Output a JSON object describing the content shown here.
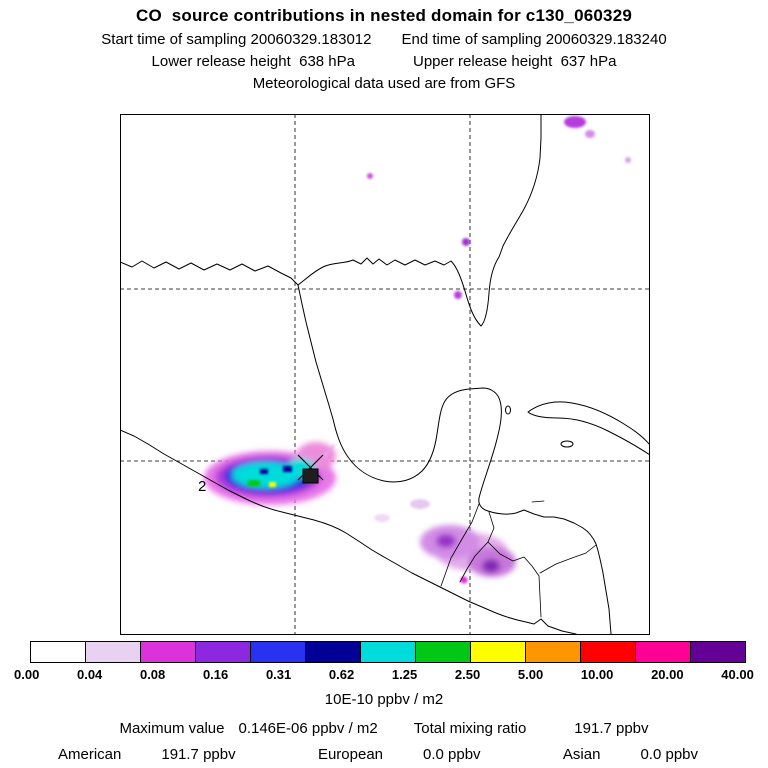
{
  "header": {
    "title": "CO  source contributions in nested domain for c130_060329",
    "sampling_start": "Start time of sampling 20060329.183012",
    "sampling_end": "End time of sampling 20060329.183240",
    "release_lower": "Lower release height  638 hPa",
    "release_upper": "Upper release height  637 hPa",
    "met_line": "Meteorological data used are from GFS"
  },
  "map": {
    "region_label": "2"
  },
  "colorbar": {
    "ticks": [
      "0.00",
      "0.04",
      "0.08",
      "0.16",
      "0.31",
      "0.62",
      "1.25",
      "2.50",
      "5.00",
      "10.00",
      "20.00",
      "40.00"
    ],
    "colors": [
      "#ffffff",
      "#e9d2f1",
      "#dc32dc",
      "#8c28e0",
      "#2832f0",
      "#000096",
      "#00dcdc",
      "#00c814",
      "#ffff00",
      "#ff9600",
      "#ff0000",
      "#ff0096",
      "#640096"
    ],
    "units": "10E-10 ppbv / m2"
  },
  "stats": {
    "max_label": "Maximum value",
    "max_value": "0.146E-06 ppbv / m2",
    "tmr_label": "Total mixing ratio",
    "tmr_value": "191.7 ppbv",
    "regions": [
      {
        "name": "American",
        "value": "191.7 ppbv"
      },
      {
        "name": "European",
        "value": "0.0 ppbv"
      },
      {
        "name": "Asian",
        "value": "0.0 ppbv"
      }
    ]
  },
  "chart_data": {
    "type": "heatmap",
    "title": "CO source contributions in nested domain for c130_060329",
    "sampling_start": "20060329.183012",
    "sampling_end": "20060329.183240",
    "lower_release_height_hPa": 638,
    "upper_release_height_hPa": 637,
    "meteorology": "GFS",
    "colorbar_levels": [
      0.0,
      0.04,
      0.08,
      0.16,
      0.31,
      0.62,
      1.25,
      2.5,
      5.0,
      10.0,
      20.0,
      40.0
    ],
    "colorbar_units": "10E-10 ppbv / m2",
    "maximum_value": "0.146E-06 ppbv / m2",
    "total_mixing_ratio_ppbv": 191.7,
    "source_contributions_ppbv": {
      "American": 191.7,
      "European": 0.0,
      "Asian": 0.0
    },
    "legend_position": "bottom",
    "grid": "dashed lat/lon lines, 2 vertical and 2 horizontal",
    "notes": "Filled contours over map of Mexico, Gulf of Mexico and Central America; main plume (cyan/blue core, magenta fringe) over central Mexico at black release marker labeled 2; weaker purple plume over Guatemala; scattered purple specks in north and northeast."
  }
}
